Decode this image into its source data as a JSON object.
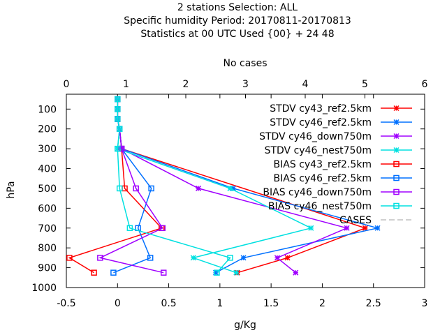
{
  "chart_data": {
    "type": "line",
    "title_lines": [
      "2 stations Selection: ALL",
      "Specific humidity  Period: 20170811-20170813",
      "Statistics at 00 UTC  Used {00} + 24 48"
    ],
    "x2label": "No cases",
    "xlabel": "g/Kg",
    "ylabel": "hPa",
    "xlim": [
      -0.5,
      3
    ],
    "x2lim": [
      0,
      6
    ],
    "ylim": [
      1000,
      25
    ],
    "xticks": [
      "-0.5",
      "0",
      "0.5",
      "1",
      "1.5",
      "2",
      "2.5",
      "3"
    ],
    "x2ticks": [
      "0",
      "1",
      "2",
      "3",
      "4",
      "5",
      "6"
    ],
    "yticks": [
      "100",
      "200",
      "300",
      "400",
      "500",
      "600",
      "700",
      "800",
      "900",
      "1000"
    ],
    "grid": false,
    "legend_position": "top-right",
    "series": [
      {
        "name": "STDV cy43_ref2.5km",
        "color": "#ff0000",
        "marker": "x",
        "points": [
          [
            0.0,
            50
          ],
          [
            0.0,
            100
          ],
          [
            0.0,
            150
          ],
          [
            0.02,
            200
          ],
          [
            0.04,
            300
          ],
          [
            2.42,
            700
          ],
          [
            1.66,
            850
          ],
          [
            1.17,
            925
          ]
        ]
      },
      {
        "name": "STDV cy46_ref2.5km",
        "color": "#0070ff",
        "marker": "x",
        "points": [
          [
            0.0,
            50
          ],
          [
            0.0,
            100
          ],
          [
            0.0,
            150
          ],
          [
            0.02,
            200
          ],
          [
            0.04,
            300
          ],
          [
            1.13,
            500
          ],
          [
            2.54,
            700
          ],
          [
            1.23,
            850
          ],
          [
            0.96,
            925
          ]
        ]
      },
      {
        "name": "STDV cy46_down750m",
        "color": "#a000ff",
        "marker": "x",
        "points": [
          [
            0.0,
            50
          ],
          [
            0.0,
            100
          ],
          [
            0.0,
            150
          ],
          [
            0.02,
            200
          ],
          [
            0.04,
            300
          ],
          [
            0.79,
            500
          ],
          [
            2.24,
            700
          ],
          [
            1.56,
            850
          ],
          [
            1.74,
            925
          ]
        ]
      },
      {
        "name": "STDV cy46_nest750m",
        "color": "#00e0e0",
        "marker": "x",
        "points": [
          [
            0.0,
            50
          ],
          [
            0.0,
            100
          ],
          [
            0.0,
            150
          ],
          [
            0.02,
            200
          ],
          [
            0.0,
            300
          ],
          [
            1.1,
            500
          ],
          [
            1.89,
            700
          ],
          [
            0.74,
            850
          ],
          [
            1.16,
            925
          ]
        ]
      },
      {
        "name": "BIAS cy43_ref2.5km",
        "color": "#ff0000",
        "marker": "square",
        "points": [
          [
            0.0,
            50
          ],
          [
            0.0,
            100
          ],
          [
            0.0,
            150
          ],
          [
            0.02,
            200
          ],
          [
            0.04,
            300
          ],
          [
            0.07,
            500
          ],
          [
            0.43,
            700
          ],
          [
            -0.47,
            850
          ],
          [
            -0.23,
            925
          ]
        ]
      },
      {
        "name": "BIAS cy46_ref2.5km",
        "color": "#0070ff",
        "marker": "square",
        "points": [
          [
            0.0,
            50
          ],
          [
            0.0,
            100
          ],
          [
            0.0,
            150
          ],
          [
            0.02,
            200
          ],
          [
            0.04,
            300
          ],
          [
            0.33,
            500
          ],
          [
            0.2,
            700
          ],
          [
            0.32,
            850
          ],
          [
            -0.04,
            925
          ]
        ]
      },
      {
        "name": "BIAS cy46_down750m",
        "color": "#a000ff",
        "marker": "square",
        "points": [
          [
            0.0,
            50
          ],
          [
            0.0,
            100
          ],
          [
            0.0,
            150
          ],
          [
            0.02,
            200
          ],
          [
            0.04,
            300
          ],
          [
            0.18,
            500
          ],
          [
            0.44,
            700
          ],
          [
            -0.17,
            850
          ],
          [
            0.45,
            925
          ]
        ]
      },
      {
        "name": "BIAS cy46_nest750m",
        "color": "#00e0e0",
        "marker": "square",
        "points": [
          [
            0.0,
            50
          ],
          [
            0.0,
            100
          ],
          [
            0.0,
            150
          ],
          [
            0.02,
            200
          ],
          [
            0.0,
            300
          ],
          [
            0.02,
            500
          ],
          [
            0.12,
            700
          ],
          [
            1.1,
            850
          ],
          [
            0.97,
            925
          ]
        ]
      }
    ],
    "cases": {
      "name": "CASES",
      "color": "#a0a0a0",
      "dashed": true
    }
  }
}
